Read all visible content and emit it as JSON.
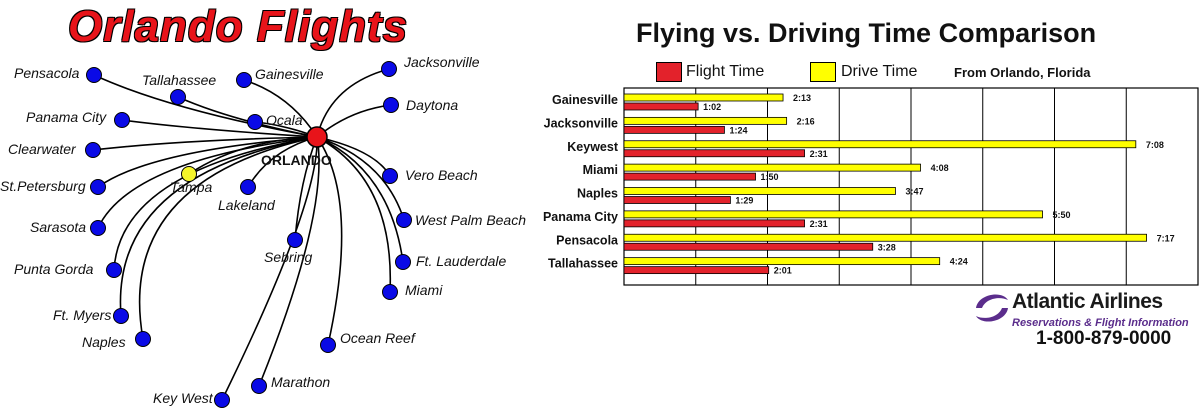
{
  "map": {
    "title": "Orlando Flights",
    "hub": "ORLANDO",
    "cities": [
      {
        "name": "Pensacola"
      },
      {
        "name": "Tallahassee"
      },
      {
        "name": "Gainesville"
      },
      {
        "name": "Jacksonville"
      },
      {
        "name": "Daytona"
      },
      {
        "name": "Panama City"
      },
      {
        "name": "Ocala"
      },
      {
        "name": "Clearwater"
      },
      {
        "name": "Tampa"
      },
      {
        "name": "St.Petersburg"
      },
      {
        "name": "Lakeland"
      },
      {
        "name": "Vero Beach"
      },
      {
        "name": "Sarasota"
      },
      {
        "name": "West Palm Beach"
      },
      {
        "name": "Sebring"
      },
      {
        "name": "Punta Gorda"
      },
      {
        "name": "Ft. Lauderdale"
      },
      {
        "name": "Miami"
      },
      {
        "name": "Ft. Myers"
      },
      {
        "name": "Naples"
      },
      {
        "name": "Ocean Reef"
      },
      {
        "name": "Marathon"
      },
      {
        "name": "Key West"
      }
    ],
    "colors": {
      "hub": "#e8141a",
      "city": "#0a0ae6",
      "highlight": "#f5f52a"
    }
  },
  "chart_data": {
    "type": "bar",
    "title": "Flying vs. Driving Time Comparison",
    "subtitle": "From Orlando, Florida",
    "orientation": "horizontal",
    "unit": "hours:minutes",
    "categories": [
      "Gainesville",
      "Jacksonville",
      "Keywest",
      "Miami",
      "Naples",
      "Panama City",
      "Pensacola",
      "Tallahassee"
    ],
    "series": [
      {
        "name": "Drive Time",
        "color": "#ffff00",
        "values": [
          "2:13",
          "2:16",
          "7:08",
          "4:08",
          "3:47",
          "5:50",
          "7:17",
          "4:24"
        ]
      },
      {
        "name": "Flight Time",
        "color": "#e3222b",
        "values": [
          "1:02",
          "1:24",
          "2:31",
          "1:50",
          "1:29",
          "2:31",
          "3:28",
          "2:01"
        ]
      }
    ],
    "xlim": [
      0,
      8
    ],
    "grid": true,
    "legend": [
      {
        "label": "Flight Time",
        "color": "#e3222b"
      },
      {
        "label": "Drive Time",
        "color": "#ffff00"
      }
    ],
    "legend_position": "top"
  },
  "brand": {
    "name": "Atlantic Airlines",
    "tagline": "Reservations & Flight Information",
    "phone": "1-800-879-0000",
    "accent": "#5b2d8c"
  }
}
